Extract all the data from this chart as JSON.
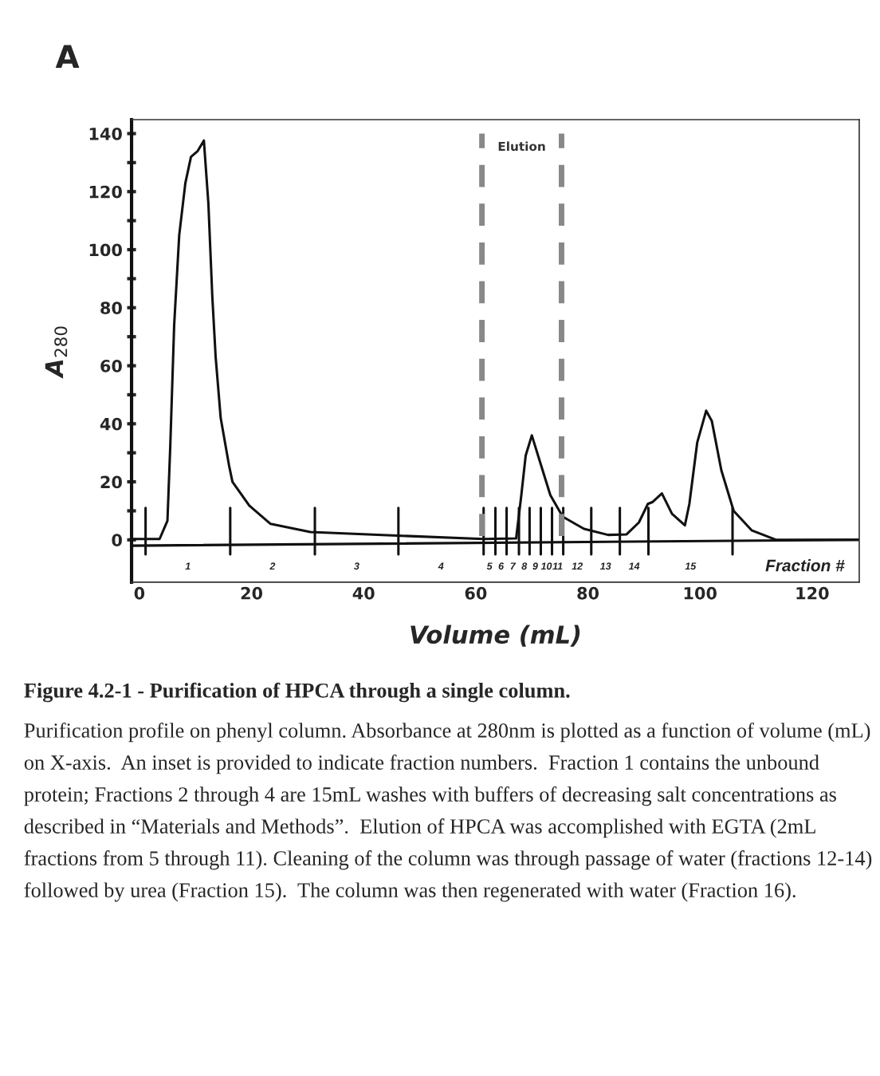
{
  "chart_data": {
    "type": "line",
    "title": "A",
    "xlabel": "Volume (mL)",
    "ylabel": "A$_{280}$",
    "xlim": [
      -1.4,
      128.4
    ],
    "ylim": [
      -14.6,
      144.8
    ],
    "xticks": [
      0,
      20,
      40,
      60,
      80,
      100,
      120
    ],
    "yticks": [
      0,
      {
        "value": 10,
        "label": null
      },
      20,
      {
        "value": 30,
        "label": null
      },
      40,
      {
        "value": 50,
        "label": null
      },
      60,
      {
        "value": 70,
        "label": null
      },
      80,
      {
        "value": 90,
        "label": null
      },
      100,
      {
        "value": 110,
        "label": null
      },
      120,
      {
        "value": 130,
        "label": null
      },
      140
    ],
    "grid": false,
    "marker": "none",
    "line_style": "solid",
    "series": [
      {
        "color": "#111111",
        "x": [
          -1.4,
          0,
          3.6,
          5.0,
          5.5,
          6.2,
          7.1,
          8.2,
          9.2,
          10.4,
          11.5,
          12.3,
          13.0,
          13.6,
          14.5,
          16.0,
          16.6,
          19.6,
          23.4,
          30.5,
          46.8,
          61.4,
          67.2,
          68.1,
          68.9,
          70.0,
          71.6,
          73.3,
          75.5,
          79.3,
          83.6,
          86.9,
          89.1,
          90.7,
          91.5,
          93.2,
          95.0,
          97.3,
          98.1,
          99.5,
          101.1,
          102.1,
          103.8,
          106.0,
          109.2,
          113.6,
          128.4
        ],
        "values": [
          0.3,
          0.3,
          0.3,
          6.6,
          32,
          74,
          105,
          123,
          132,
          134,
          137.6,
          116,
          84,
          63,
          42,
          25.5,
          20,
          11.8,
          5.5,
          2.7,
          1.4,
          0.3,
          0.5,
          15,
          29,
          36,
          26,
          15.4,
          8,
          3.8,
          1.7,
          1.9,
          6,
          12.4,
          13,
          16,
          9,
          5,
          12.4,
          33.5,
          44.5,
          41,
          24,
          10,
          3.3,
          0,
          0
        ]
      },
      {
        "color": "#111111",
        "x": [
          1.1,
          1.1,
          null,
          16.2,
          16.2,
          null,
          31.3,
          31.3,
          null,
          46.2,
          46.2,
          null,
          61.4,
          61.4,
          null,
          63.5,
          63.5,
          null,
          65.5,
          65.5,
          null,
          67.7,
          67.7,
          null,
          69.6,
          69.6,
          null,
          71.6,
          71.6,
          null,
          73.6,
          73.6,
          null,
          75.6,
          75.6,
          null,
          80.6,
          80.6,
          null,
          85.7,
          85.7,
          null,
          90.8,
          90.8,
          null,
          105.8,
          105.8
        ],
        "values": [
          11,
          -5,
          null,
          11,
          -5,
          null,
          11,
          -5,
          null,
          11,
          -5,
          null,
          11,
          -5,
          null,
          11,
          -5,
          null,
          11,
          -5,
          null,
          11,
          -5,
          null,
          11,
          -5,
          null,
          11,
          -5,
          null,
          11,
          -5,
          null,
          11,
          -5,
          null,
          11,
          -5,
          null,
          11,
          -5,
          null,
          11,
          -5,
          null,
          11,
          -5
        ]
      },
      {
        "color": "#111111",
        "x": [
          -1.4,
          128.4
        ],
        "values": [
          -2,
          0
        ]
      }
    ],
    "ref_lines": [
      {
        "axis": "x",
        "value": 61.1,
        "color": "#888888",
        "line_style": "dashed"
      },
      {
        "axis": "x",
        "value": 75.3,
        "color": "#888888",
        "line_style": "dashed"
      }
    ],
    "annotations": [
      "Elution",
      "1",
      "2",
      "3",
      "4",
      "5",
      "6",
      "7",
      "8",
      "9",
      "10",
      "11",
      "12",
      "13",
      "14",
      "15",
      "Fraction #",
      "Figure 4.2-1 - Purification of HPCA through a single column.",
      "Purification profile on phenyl column. Absorbance at 280nm is plotted as a function of volume (mL) on X-axis.  An inset is provided to indicate fraction numbers.  Fraction 1 contains the unbound protein; Fractions 2 through 4 are 15mL washes with buffers of decreasing salt concentrations as described in “Materials and Methods”.  Elution of HPCA was accomplished with EGTA (2mL fractions from 5 through 11). Cleaning of the column was through passage of water (fractions 12-14) followed by urea (Fraction 15).  The column was then regenerated with water (Fraction 16)."
    ]
  }
}
